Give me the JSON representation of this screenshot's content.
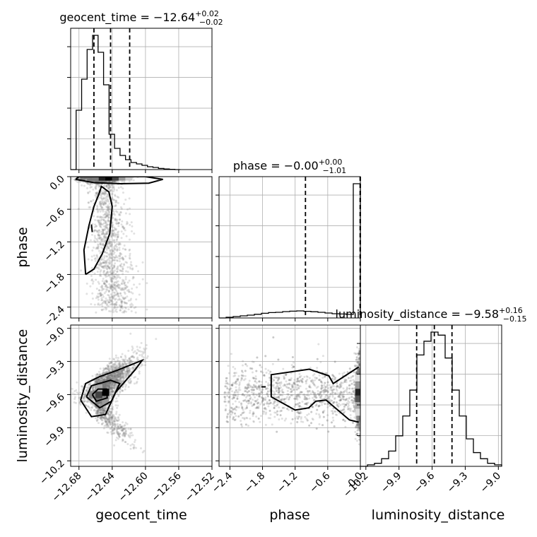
{
  "chart_data": {
    "type": "corner",
    "parameters": [
      "geocent_time",
      "phase",
      "luminosity_distance"
    ],
    "titles": [
      {
        "param": "geocent_time",
        "prefix": "geocent_time = ",
        "median": "−12.64",
        "plus": "+0.02",
        "minus": "−0.02"
      },
      {
        "param": "phase",
        "prefix": "phase = ",
        "median": "−0.00",
        "plus": "+0.00",
        "minus": "−1.01"
      },
      {
        "param": "luminosity_distance",
        "prefix": "luminosity_distance = ",
        "median": "−9.58",
        "plus": "+0.16",
        "minus": "−0.15"
      }
    ],
    "axes": {
      "geocent_time": {
        "range": [
          -12.69,
          -12.52
        ],
        "ticks": [
          -12.68,
          -12.64,
          -12.6,
          -12.56,
          -12.52
        ],
        "tick_labels": [
          "−12.68",
          "−12.64",
          "−12.60",
          "−12.56",
          "−12.52"
        ]
      },
      "phase": {
        "range": [
          -2.6,
          0.0
        ],
        "ticks": [
          -2.4,
          -1.8,
          -1.2,
          -0.6,
          0.0
        ],
        "tick_labels": [
          "−2.4",
          "−1.8",
          "−1.2",
          "−0.6",
          "0.0"
        ]
      },
      "luminosity_distance": {
        "range": [
          -10.25,
          -8.97
        ],
        "ticks": [
          -10.2,
          -9.9,
          -9.6,
          -9.3,
          -9.0
        ],
        "tick_labels": [
          "−10.2",
          "−9.9",
          "−9.6",
          "−9.3",
          "−9.0"
        ]
      }
    },
    "histograms": {
      "geocent_time": {
        "bins": [
          -12.69,
          -12.6834,
          -12.6768,
          -12.6702,
          -12.6636,
          -12.657,
          -12.6504,
          -12.6438,
          -12.6372,
          -12.6306,
          -12.624,
          -12.6174,
          -12.6108,
          -12.6042,
          -12.5976,
          -12.591,
          -12.5844,
          -12.5778,
          -12.5712,
          -12.5646,
          -12.558
        ],
        "counts": [
          0,
          0.42,
          0.64,
          0.85,
          0.95,
          0.83,
          0.6,
          0.25,
          0.15,
          0.1,
          0.07,
          0.05,
          0.04,
          0.03,
          0.02,
          0.015,
          0.008,
          0.004,
          0.002,
          0
        ],
        "quantiles": [
          -12.662,
          -12.642,
          -12.619
        ]
      },
      "phase": {
        "bins": [
          -2.6,
          -2.47,
          -2.34,
          -2.21,
          -2.08,
          -1.95,
          -1.82,
          -1.69,
          -1.56,
          -1.43,
          -1.3,
          -1.17,
          -1.04,
          -0.91,
          -0.78,
          -0.65,
          -0.52,
          -0.39,
          -0.26,
          -0.13,
          0.0
        ],
        "counts": [
          0,
          0.005,
          0.01,
          0.015,
          0.02,
          0.026,
          0.033,
          0.038,
          0.04,
          0.045,
          0.048,
          0.05,
          0.047,
          0.044,
          0.04,
          0.035,
          0.03,
          0.028,
          0.025,
          0.95
        ],
        "quantiles": [
          -1.01,
          -0.005,
          0.0
        ]
      },
      "luminosity_distance": {
        "bins": [
          -10.25,
          -10.186,
          -10.122,
          -10.058,
          -9.994,
          -9.93,
          -9.866,
          -9.802,
          -9.738,
          -9.674,
          -9.61,
          -9.546,
          -9.482,
          -9.418,
          -9.354,
          -9.29,
          -9.226,
          -9.162,
          -9.098,
          -9.034,
          -8.97
        ],
        "counts": [
          0,
          0.01,
          0.02,
          0.05,
          0.1,
          0.2,
          0.33,
          0.5,
          0.73,
          0.82,
          0.88,
          0.86,
          0.71,
          0.5,
          0.33,
          0.18,
          0.09,
          0.05,
          0.02,
          0.01
        ],
        "quantiles": [
          -9.74,
          -9.58,
          -9.42
        ]
      }
    },
    "contours": {
      "phase_vs_geocent_time": [
        [
          [
            -12.672,
            -1.8
          ],
          [
            -12.674,
            -1.35
          ],
          [
            -12.668,
            -0.9
          ],
          [
            -12.662,
            -0.55
          ],
          [
            -12.656,
            -0.32
          ],
          [
            -12.653,
            -0.18
          ],
          [
            -12.644,
            -0.28
          ],
          [
            -12.64,
            -0.55
          ],
          [
            -12.643,
            -1.05
          ],
          [
            -12.652,
            -1.42
          ],
          [
            -12.662,
            -1.7
          ],
          [
            -12.672,
            -1.8
          ]
        ],
        [
          [
            -12.684,
            -0.05
          ],
          [
            -12.662,
            -0.11
          ],
          [
            -12.63,
            -0.13
          ],
          [
            -12.596,
            -0.12
          ],
          [
            -12.579,
            -0.05
          ],
          [
            -12.6,
            0.0
          ],
          [
            -12.68,
            0.0
          ],
          [
            -12.684,
            -0.05
          ]
        ],
        [
          [
            -12.665,
            -0.88
          ],
          [
            -12.664,
            -1.02
          ]
        ]
      ],
      "luminosity_distance_vs_geocent_time": [
        [
          [
            -12.678,
            -9.65
          ],
          [
            -12.672,
            -9.5
          ],
          [
            -12.656,
            -9.44
          ],
          [
            -12.634,
            -9.38
          ],
          [
            -12.604,
            -9.29
          ],
          [
            -12.613,
            -9.38
          ],
          [
            -12.636,
            -9.58
          ],
          [
            -12.648,
            -9.78
          ],
          [
            -12.665,
            -9.8
          ],
          [
            -12.678,
            -9.65
          ]
        ],
        [
          [
            -12.671,
            -9.62
          ],
          [
            -12.665,
            -9.52
          ],
          [
            -12.642,
            -9.47
          ],
          [
            -12.631,
            -9.5
          ],
          [
            -12.641,
            -9.66
          ],
          [
            -12.655,
            -9.72
          ],
          [
            -12.671,
            -9.62
          ]
        ],
        [
          [
            -12.664,
            -9.6
          ],
          [
            -12.657,
            -9.55
          ],
          [
            -12.647,
            -9.55
          ],
          [
            -12.646,
            -9.63
          ],
          [
            -12.659,
            -9.66
          ],
          [
            -12.664,
            -9.6
          ]
        ]
      ],
      "luminosity_distance_vs_phase": [
        [
          [
            -0.03,
            -9.35
          ],
          [
            -0.5,
            -9.5
          ],
          [
            -0.58,
            -9.43
          ],
          [
            -0.94,
            -9.37
          ],
          [
            -1.64,
            -9.42
          ],
          [
            -1.64,
            -9.62
          ],
          [
            -1.2,
            -9.74
          ],
          [
            -0.95,
            -9.72
          ],
          [
            -0.82,
            -9.66
          ],
          [
            -0.63,
            -9.65
          ],
          [
            -0.2,
            -9.83
          ],
          [
            -0.03,
            -9.85
          ]
        ],
        [
          [
            -1.82,
            -9.53
          ],
          [
            -1.74,
            -9.53
          ]
        ]
      ]
    },
    "color": "#000000"
  }
}
